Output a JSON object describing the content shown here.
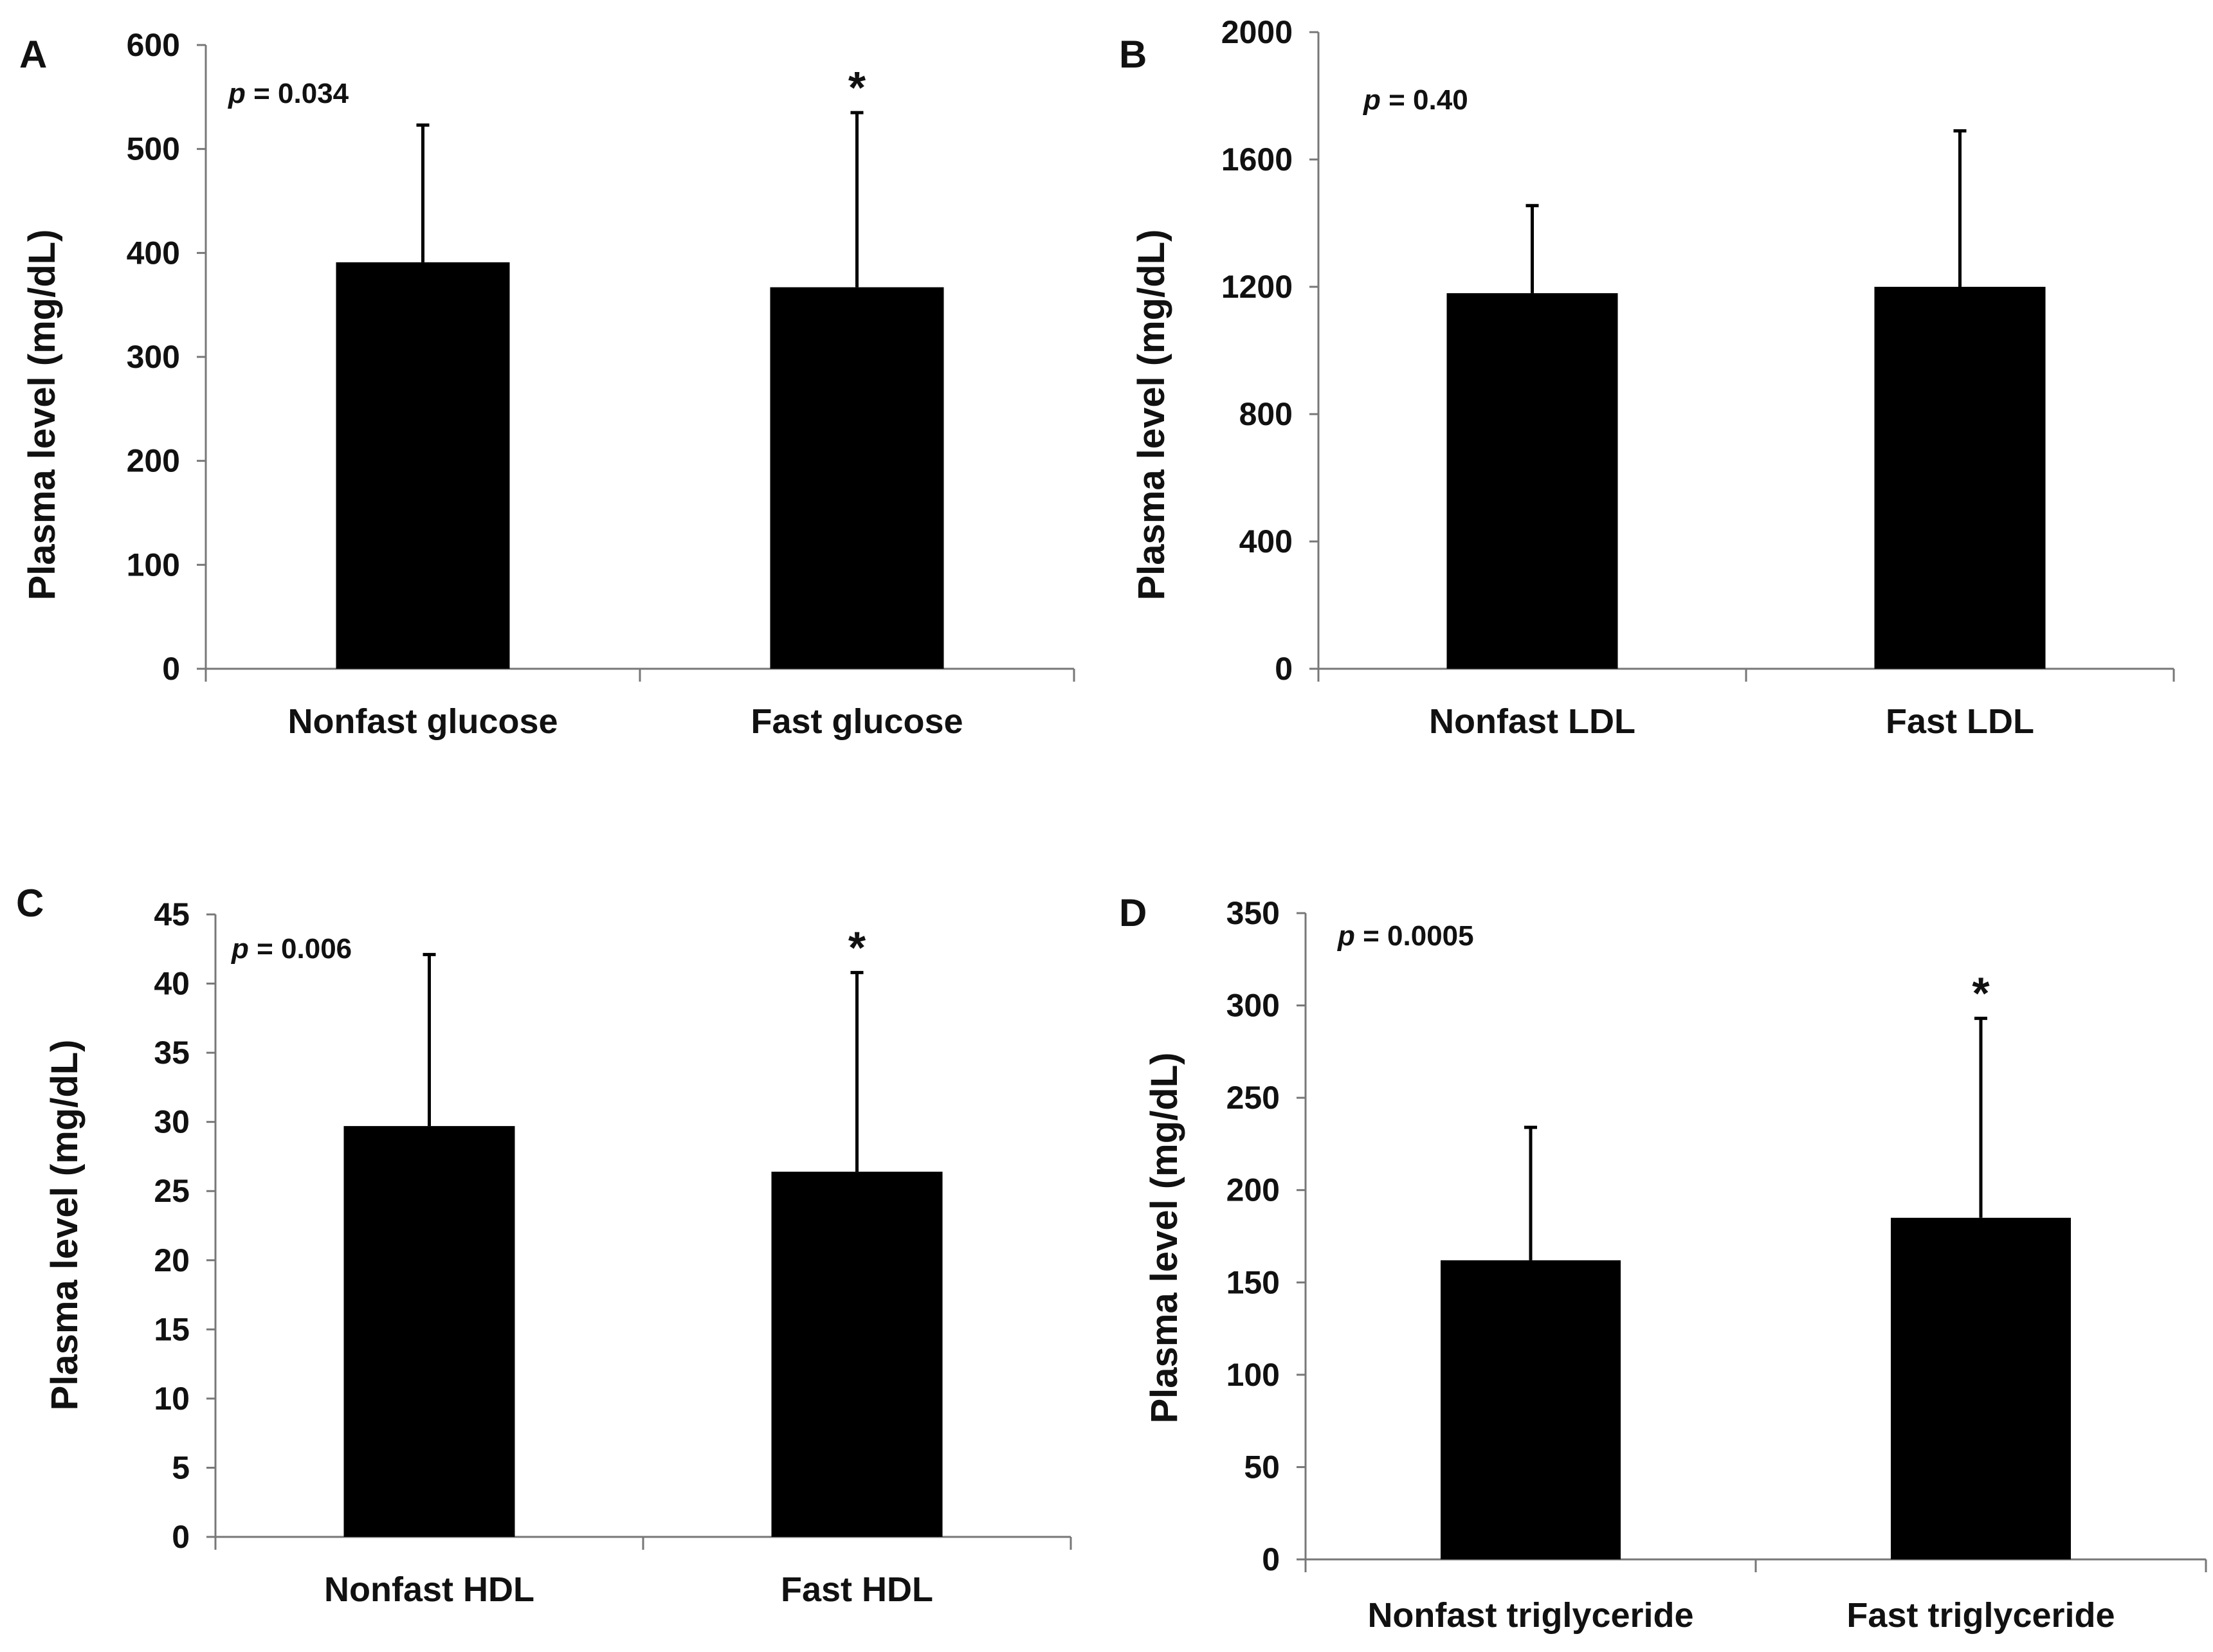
{
  "chart_data": [
    {
      "panel": "A",
      "type": "bar",
      "ylabel": "Plasma level (mg/dL)",
      "categories": [
        "Nonfast glucose",
        "Fast glucose"
      ],
      "values": [
        391,
        367
      ],
      "errors": [
        132,
        168
      ],
      "ylim": [
        0,
        600
      ],
      "yticks": [
        0,
        100,
        200,
        300,
        400,
        500,
        600
      ],
      "annotation": {
        "p_symbol": "p",
        "p_text": "= 0.034"
      },
      "significance": [
        "",
        "*"
      ]
    },
    {
      "panel": "B",
      "type": "bar",
      "ylabel": "Plasma level (mg/dL)",
      "categories": [
        "Nonfast LDL",
        "Fast LDL"
      ],
      "values": [
        1180,
        1200
      ],
      "errors": [
        275,
        490
      ],
      "ylim": [
        0,
        2000
      ],
      "yticks": [
        0,
        400,
        800,
        1200,
        1600,
        2000
      ],
      "annotation": {
        "p_symbol": "p",
        "p_text": "= 0.40"
      },
      "significance": [
        "",
        ""
      ]
    },
    {
      "panel": "C",
      "type": "bar",
      "ylabel": "Plasma level (mg/dL)",
      "categories": [
        "Nonfast HDL",
        "Fast HDL"
      ],
      "values": [
        29.7,
        26.4
      ],
      "errors": [
        12.4,
        14.4
      ],
      "ylim": [
        0,
        45
      ],
      "yticks": [
        0,
        5,
        10,
        15,
        20,
        25,
        30,
        35,
        40,
        45
      ],
      "annotation": {
        "p_symbol": "p",
        "p_text": "= 0.006"
      },
      "significance": [
        "",
        "*"
      ]
    },
    {
      "panel": "D",
      "type": "bar",
      "ylabel": "Plasma level (mg/dL)",
      "categories": [
        "Nonfast triglyceride",
        "Fast triglyceride"
      ],
      "values": [
        162,
        185
      ],
      "errors": [
        72,
        108
      ],
      "ylim": [
        0,
        350
      ],
      "yticks": [
        0,
        50,
        100,
        150,
        200,
        250,
        300,
        350
      ],
      "annotation": {
        "p_symbol": "p",
        "p_text": "= 0.0005"
      },
      "significance": [
        "",
        "*"
      ]
    }
  ]
}
